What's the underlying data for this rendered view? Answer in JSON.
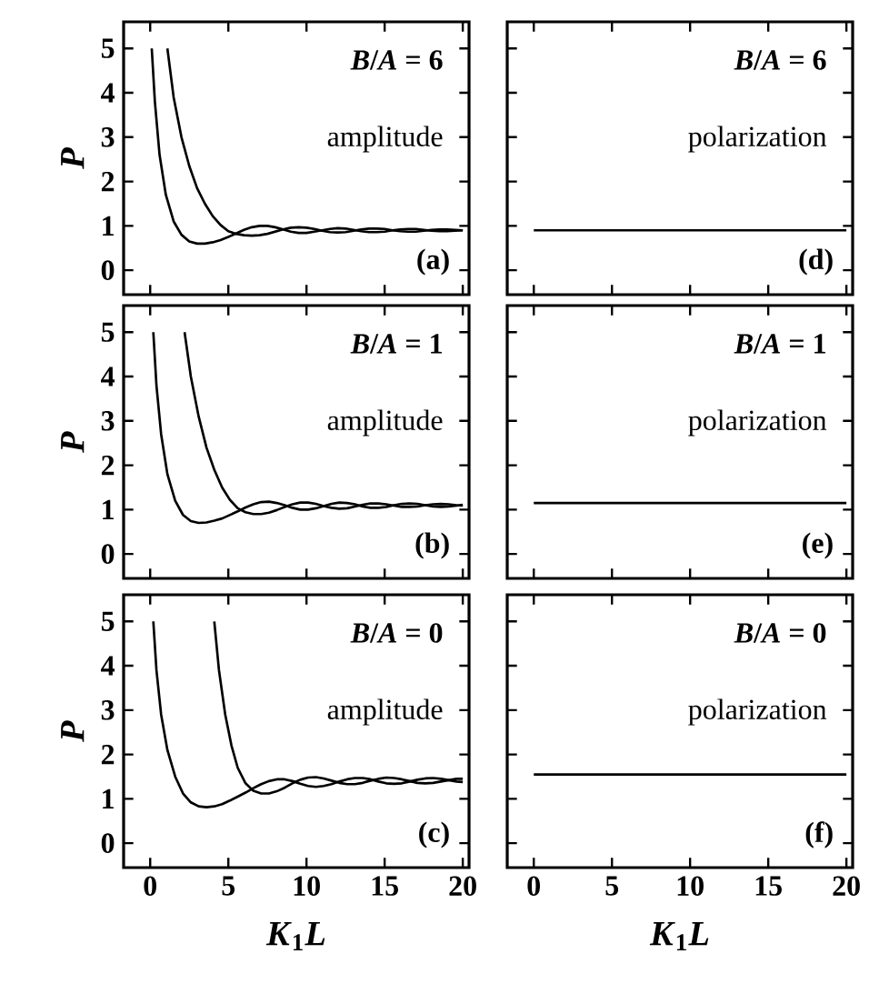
{
  "chart_data": [
    {
      "type": "line",
      "xlim": [
        -1.7,
        20.4
      ],
      "ylim": [
        -0.55,
        5.6
      ],
      "xticks": [
        0,
        5,
        10,
        15,
        20
      ],
      "yticks": [
        0,
        1,
        2,
        3,
        4,
        5
      ],
      "ylabel": "*P*",
      "tick_labels": "y",
      "annotations": [
        "*B*/*A* = 6",
        "amplitude",
        "(a)"
      ],
      "series": [
        {
          "color": "#000000",
          "x": [
            0.1,
            0.3,
            0.6,
            1.0,
            1.5,
            2,
            2.5,
            3,
            3.5,
            4,
            4.5,
            5,
            5.5,
            6,
            6.5,
            7,
            7.5,
            8,
            8.5,
            9,
            9.5,
            10,
            10.5,
            11,
            11.5,
            12,
            12.5,
            13,
            13.5,
            14,
            14.5,
            15,
            15.5,
            16,
            16.5,
            17,
            17.5,
            18,
            18.5,
            19,
            19.5,
            20
          ],
          "values": [
            5,
            3.8,
            2.6,
            1.7,
            1.1,
            0.8,
            0.65,
            0.6,
            0.6,
            0.63,
            0.68,
            0.75,
            0.83,
            0.91,
            0.97,
            1.0,
            1.0,
            0.97,
            0.92,
            0.87,
            0.84,
            0.84,
            0.87,
            0.9,
            0.93,
            0.95,
            0.94,
            0.91,
            0.88,
            0.86,
            0.86,
            0.87,
            0.9,
            0.92,
            0.93,
            0.93,
            0.91,
            0.89,
            0.88,
            0.88,
            0.89,
            0.9
          ]
        },
        {
          "color": "#000000",
          "x": [
            1.1,
            1.5,
            2,
            2.5,
            3,
            3.5,
            4,
            4.5,
            5,
            5.5,
            6,
            6.5,
            7,
            7.5,
            8,
            8.5,
            9,
            9.5,
            10,
            10.5,
            11,
            11.5,
            12,
            12.5,
            13,
            13.5,
            14,
            14.5,
            15,
            15.5,
            16,
            16.5,
            17,
            17.5,
            18,
            18.5,
            19,
            19.5,
            20
          ],
          "values": [
            5,
            3.9,
            3.0,
            2.35,
            1.85,
            1.5,
            1.22,
            1.02,
            0.88,
            0.82,
            0.79,
            0.78,
            0.79,
            0.82,
            0.87,
            0.92,
            0.96,
            0.97,
            0.96,
            0.93,
            0.89,
            0.86,
            0.85,
            0.86,
            0.89,
            0.92,
            0.94,
            0.94,
            0.93,
            0.9,
            0.88,
            0.87,
            0.87,
            0.89,
            0.91,
            0.92,
            0.92,
            0.91,
            0.9
          ]
        }
      ]
    },
    {
      "type": "line",
      "xlim": [
        -1.7,
        20.4
      ],
      "ylim": [
        -0.55,
        5.6
      ],
      "xticks": [
        0,
        5,
        10,
        15,
        20
      ],
      "yticks": [
        0,
        1,
        2,
        3,
        4,
        5
      ],
      "tick_labels": false,
      "annotations": [
        "*B*/*A* = 6",
        "polarization",
        "(d)"
      ],
      "series": [
        {
          "color": "#000000",
          "x": [
            0,
            20
          ],
          "values": [
            0.9,
            0.9
          ]
        }
      ]
    },
    {
      "type": "line",
      "xlim": [
        -1.7,
        20.4
      ],
      "ylim": [
        -0.55,
        5.6
      ],
      "xticks": [
        0,
        5,
        10,
        15,
        20
      ],
      "yticks": [
        0,
        1,
        2,
        3,
        4,
        5
      ],
      "ylabel": "*P*",
      "tick_labels": "y",
      "annotations": [
        "*B*/*A* = 1",
        "amplitude",
        "(b)"
      ],
      "series": [
        {
          "color": "#000000",
          "x": [
            0.2,
            0.4,
            0.7,
            1.1,
            1.6,
            2.1,
            2.6,
            3.1,
            3.6,
            4.1,
            4.6,
            5.1,
            5.6,
            6.1,
            6.6,
            7.1,
            7.6,
            8.1,
            8.6,
            9.1,
            9.6,
            10.1,
            10.6,
            11.1,
            11.6,
            12.1,
            12.6,
            13.1,
            13.6,
            14.1,
            14.6,
            15.1,
            15.6,
            16.1,
            16.6,
            17.1,
            17.6,
            18.1,
            18.6,
            19.1,
            19.6,
            20
          ],
          "values": [
            5,
            3.8,
            2.7,
            1.8,
            1.2,
            0.88,
            0.74,
            0.7,
            0.71,
            0.75,
            0.8,
            0.88,
            0.96,
            1.05,
            1.12,
            1.17,
            1.18,
            1.15,
            1.1,
            1.04,
            1.0,
            1.0,
            1.03,
            1.08,
            1.13,
            1.16,
            1.15,
            1.12,
            1.07,
            1.04,
            1.04,
            1.06,
            1.1,
            1.13,
            1.14,
            1.13,
            1.1,
            1.07,
            1.06,
            1.07,
            1.09,
            1.11
          ]
        },
        {
          "color": "#000000",
          "x": [
            2.2,
            2.6,
            3.1,
            3.6,
            4.1,
            4.6,
            5.1,
            5.6,
            6.1,
            6.6,
            7.1,
            7.6,
            8.1,
            8.6,
            9.1,
            9.6,
            10.1,
            10.6,
            11.1,
            11.6,
            12.1,
            12.6,
            13.1,
            13.6,
            14.1,
            14.6,
            15.1,
            15.6,
            16.1,
            16.6,
            17.1,
            17.6,
            18.1,
            18.6,
            19.1,
            19.6,
            20
          ],
          "values": [
            5,
            4.0,
            3.1,
            2.4,
            1.9,
            1.5,
            1.22,
            1.03,
            0.94,
            0.9,
            0.9,
            0.93,
            0.99,
            1.06,
            1.12,
            1.16,
            1.16,
            1.13,
            1.08,
            1.04,
            1.02,
            1.03,
            1.07,
            1.11,
            1.14,
            1.14,
            1.12,
            1.09,
            1.06,
            1.06,
            1.07,
            1.1,
            1.12,
            1.13,
            1.12,
            1.1,
            1.09
          ]
        }
      ]
    },
    {
      "type": "line",
      "xlim": [
        -1.7,
        20.4
      ],
      "ylim": [
        -0.55,
        5.6
      ],
      "xticks": [
        0,
        5,
        10,
        15,
        20
      ],
      "yticks": [
        0,
        1,
        2,
        3,
        4,
        5
      ],
      "tick_labels": false,
      "annotations": [
        "*B*/*A* = 1",
        "polarization",
        "(e)"
      ],
      "series": [
        {
          "color": "#000000",
          "x": [
            0,
            20
          ],
          "values": [
            1.15,
            1.15
          ]
        }
      ]
    },
    {
      "type": "line",
      "xlim": [
        -1.7,
        20.4
      ],
      "ylim": [
        -0.55,
        5.6
      ],
      "xticks": [
        0,
        5,
        10,
        15,
        20
      ],
      "yticks": [
        0,
        1,
        2,
        3,
        4,
        5
      ],
      "ylabel": "*P*",
      "xlabel": "*K*$_{1}$*L*",
      "annotations": [
        "*B*/*A* = 0",
        "amplitude",
        "(c)"
      ],
      "series": [
        {
          "color": "#000000",
          "x": [
            0.2,
            0.4,
            0.7,
            1.1,
            1.6,
            2.1,
            2.6,
            3.1,
            3.6,
            4.1,
            4.6,
            5.1,
            5.6,
            6.1,
            6.6,
            7.1,
            7.6,
            8.1,
            8.6,
            9.1,
            9.6,
            10.1,
            10.6,
            11.1,
            11.6,
            12.1,
            12.6,
            13.1,
            13.6,
            14.1,
            14.6,
            15.1,
            15.6,
            16.1,
            16.6,
            17.1,
            17.6,
            18.1,
            18.6,
            19.1,
            19.6,
            20
          ],
          "values": [
            5,
            3.9,
            2.9,
            2.1,
            1.5,
            1.12,
            0.92,
            0.83,
            0.81,
            0.83,
            0.88,
            0.96,
            1.05,
            1.14,
            1.24,
            1.33,
            1.4,
            1.44,
            1.44,
            1.4,
            1.34,
            1.29,
            1.27,
            1.29,
            1.33,
            1.39,
            1.44,
            1.47,
            1.47,
            1.44,
            1.39,
            1.35,
            1.34,
            1.35,
            1.39,
            1.43,
            1.46,
            1.47,
            1.45,
            1.42,
            1.39,
            1.38
          ]
        },
        {
          "color": "#000000",
          "x": [
            4.1,
            4.4,
            4.8,
            5.2,
            5.6,
            6.1,
            6.6,
            7.1,
            7.6,
            8.1,
            8.6,
            9.1,
            9.6,
            10.1,
            10.6,
            11.1,
            11.6,
            12.1,
            12.6,
            13.1,
            13.6,
            14.1,
            14.6,
            15.1,
            15.6,
            16.1,
            16.6,
            17.1,
            17.6,
            18.1,
            18.6,
            19.1,
            19.6,
            20
          ],
          "values": [
            5,
            3.9,
            2.9,
            2.2,
            1.7,
            1.35,
            1.18,
            1.12,
            1.12,
            1.17,
            1.25,
            1.35,
            1.43,
            1.48,
            1.49,
            1.46,
            1.41,
            1.36,
            1.33,
            1.33,
            1.36,
            1.41,
            1.45,
            1.48,
            1.47,
            1.44,
            1.4,
            1.36,
            1.35,
            1.36,
            1.39,
            1.42,
            1.45,
            1.45
          ]
        }
      ]
    },
    {
      "type": "line",
      "xlim": [
        -1.7,
        20.4
      ],
      "ylim": [
        -0.55,
        5.6
      ],
      "xticks": [
        0,
        5,
        10,
        15,
        20
      ],
      "yticks": [
        0,
        1,
        2,
        3,
        4,
        5
      ],
      "xlabel": "*K*$_{1}$*L*",
      "tick_labels": "x",
      "annotations": [
        "*B*/*A* = 0",
        "polarization",
        "(f)"
      ],
      "series": [
        {
          "color": "#000000",
          "x": [
            0,
            20
          ],
          "values": [
            1.55,
            1.55
          ]
        }
      ]
    }
  ]
}
